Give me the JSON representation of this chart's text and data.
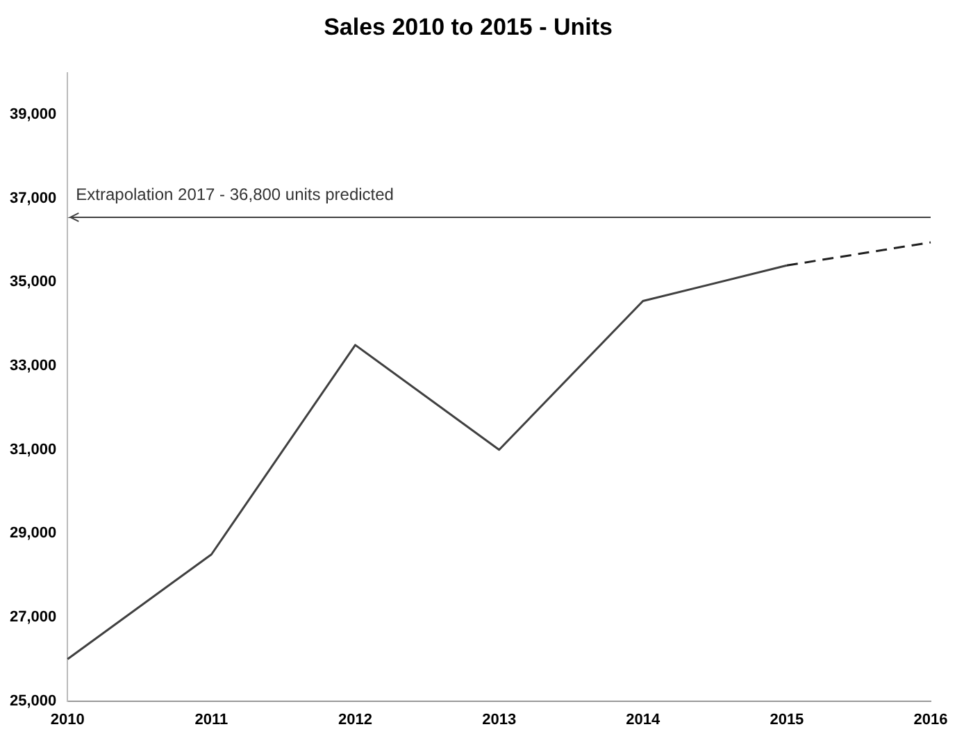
{
  "chart_data": {
    "type": "line",
    "title": "Sales 2010 to 2015 - Units",
    "categories": [
      "2010",
      "2011",
      "2012",
      "2013",
      "2014",
      "2015",
      "2016"
    ],
    "series": [
      {
        "color": "#404040",
        "line_style": "solid",
        "values": [
          26000,
          28500,
          33500,
          31000,
          34550,
          35400,
          null
        ]
      },
      {
        "color": "#202020",
        "line_style": "dashed",
        "values": [
          null,
          null,
          null,
          null,
          null,
          35400,
          35950
        ]
      }
    ],
    "ylim": [
      25000,
      40000
    ],
    "yticks": [
      {
        "value": 25000,
        "label": "25,000"
      },
      {
        "value": 27000,
        "label": "27,000"
      },
      {
        "value": 29000,
        "label": "29,000"
      },
      {
        "value": 31000,
        "label": "31,000"
      },
      {
        "value": 33000,
        "label": "33,000"
      },
      {
        "value": 35000,
        "label": "35,000"
      },
      {
        "value": 37000,
        "label": "37,000"
      },
      {
        "value": 39000,
        "label": "39,000"
      }
    ],
    "ref_lines": [
      {
        "axis": "y",
        "value": 36550,
        "label": "Extrapolation 2017 - 36,800 units predicted",
        "color": "#404040"
      }
    ],
    "grid": false,
    "legend": false,
    "marker": "none"
  }
}
